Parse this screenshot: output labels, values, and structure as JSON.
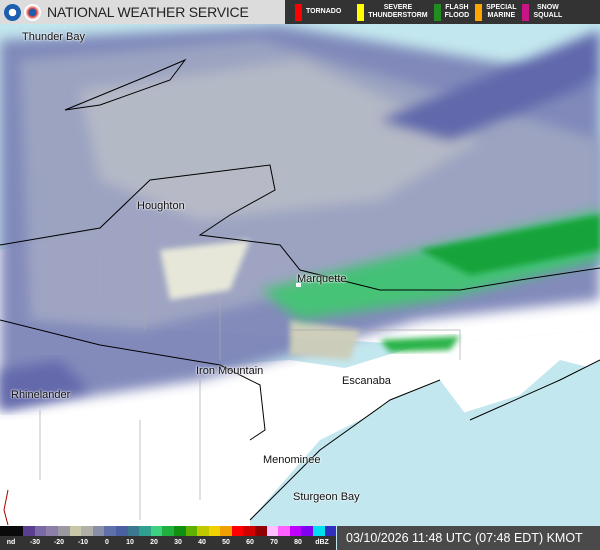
{
  "header": {
    "title": "NATIONAL WEATHER SERVICE",
    "logos": [
      "noaa-logo",
      "nws-logo"
    ]
  },
  "warnings": [
    {
      "label": "TORNADO",
      "color": "#ff0000"
    },
    {
      "label": "SEVERE\nTHUNDERSTORM",
      "color": "#ffff00"
    },
    {
      "label": "FLASH\nFLOOD",
      "color": "#228b22"
    },
    {
      "label": "SPECIAL\nMARINE",
      "color": "#ffa500"
    },
    {
      "label": "SNOW\nSQUALL",
      "color": "#c71585"
    }
  ],
  "cities": [
    "Thunder Bay",
    "Houghton",
    "Marquette",
    "Iron Mountain",
    "Rhinelander",
    "Escanaba",
    "Menominee",
    "Sturgeon Bay"
  ],
  "legend": {
    "ticks": [
      "nd",
      "-30",
      "-20",
      "-10",
      "0",
      "10",
      "20",
      "30",
      "40",
      "50",
      "60",
      "70",
      "80",
      "dBZ"
    ],
    "colors": [
      "#0a0a0a",
      "#0a0a0a",
      "#5a3f8f",
      "#7a6aa8",
      "#8c80a8",
      "#9a9aa0",
      "#c8c8a8",
      "#b0b0a8",
      "#8890a8",
      "#6070a8",
      "#4a60a0",
      "#3c7890",
      "#30a090",
      "#3cd080",
      "#20b040",
      "#109010",
      "#60b000",
      "#c0c800",
      "#f0d000",
      "#f0a000",
      "#ff0000",
      "#d00000",
      "#900000",
      "#ffc0ff",
      "#ff60ff",
      "#c000ff",
      "#8000f0",
      "#00e0f0",
      "#3030c0"
    ]
  },
  "timestamp": "03/10/2026 11:48 UTC (07:48 EDT) KMOT"
}
